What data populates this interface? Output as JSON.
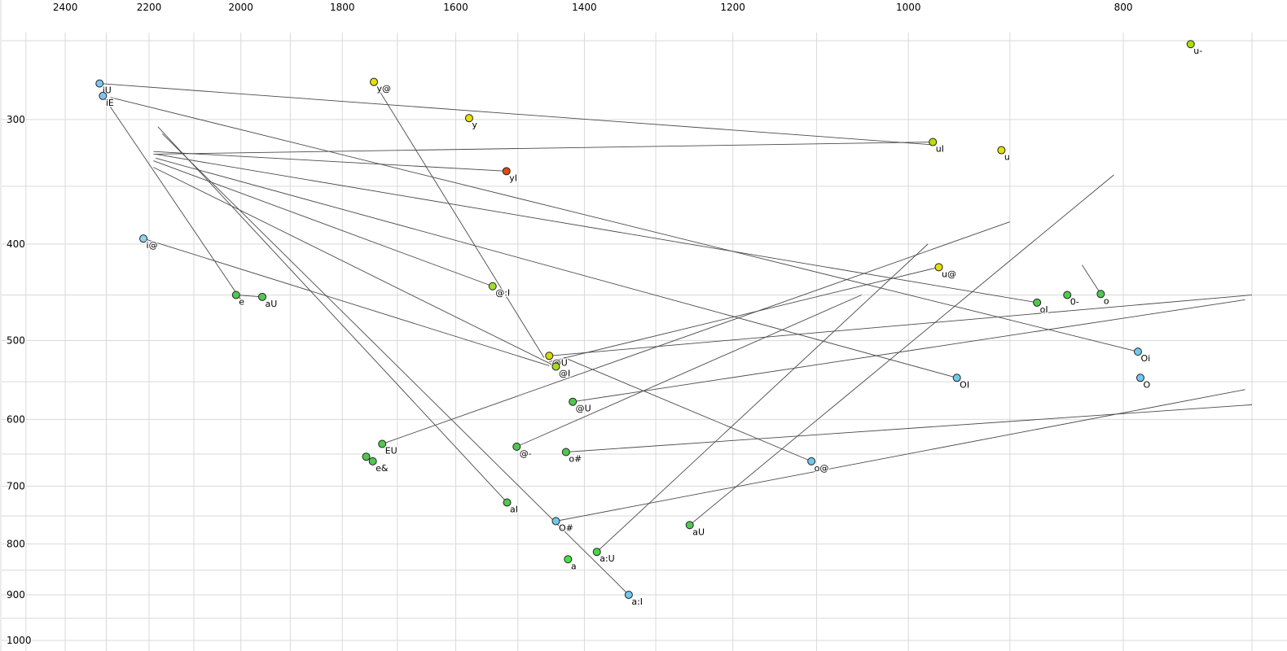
{
  "chart_data": {
    "type": "scatter",
    "title": "",
    "description": "Vowel formant plot (F2 horizontal reversed log scale, F1 vertical log scale) with diphthong trajectory lines",
    "x_axis": {
      "ticks": [
        2400,
        2200,
        2000,
        1800,
        1600,
        1400,
        1200,
        1000,
        800
      ],
      "grid_min": 700,
      "grid_max": 2500,
      "grid_step": 100,
      "scale": "log",
      "reversed": true
    },
    "y_axis": {
      "ticks": [
        300,
        400,
        500,
        600,
        700,
        800,
        900,
        1000
      ],
      "grid_min": 250,
      "grid_max": 1000,
      "grid_step": 50,
      "scale": "log",
      "reversed": false
    },
    "colors": {
      "background": "#ffffff",
      "grid": "#d9d9d9",
      "segment": "#4a4a4a",
      "marker_stroke": "#222222",
      "label": "#000000"
    },
    "points": [
      {
        "label": "u-",
        "f2": 746,
        "f1": 252,
        "color": "#a8e000"
      },
      {
        "label": "iU",
        "f2": 2316,
        "f1": 276,
        "color": "#7fc4ee"
      },
      {
        "label": "iE",
        "f2": 2308,
        "f1": 284,
        "color": "#7fc4ee"
      },
      {
        "label": "y@",
        "f2": 1742,
        "f1": 275,
        "color": "#e6e000"
      },
      {
        "label": "y",
        "f2": 1578,
        "f1": 299,
        "color": "#e6e000"
      },
      {
        "label": "uI",
        "f2": 975,
        "f1": 316,
        "color": "#b8e000"
      },
      {
        "label": "u",
        "f2": 908,
        "f1": 322,
        "color": "#e6e000"
      },
      {
        "label": "yI",
        "f2": 1518,
        "f1": 338,
        "color": "#e04a10"
      },
      {
        "label": "i@",
        "f2": 2213,
        "f1": 395,
        "color": "#8fd4f0"
      },
      {
        "label": "u@",
        "f2": 969,
        "f1": 422,
        "color": "#e6e000"
      },
      {
        "label": "0-",
        "f2": 848,
        "f1": 450,
        "color": "#50c850"
      },
      {
        "label": "o",
        "f2": 819,
        "f1": 449,
        "color": "#50c850"
      },
      {
        "label": "oI",
        "f2": 875,
        "f1": 458,
        "color": "#50c850"
      },
      {
        "label": "e",
        "f2": 2010,
        "f1": 450,
        "color": "#50c850"
      },
      {
        "label": "aU",
        "f2": 1956,
        "f1": 452,
        "color": "#50c850"
      },
      {
        "label": "@:I",
        "f2": 1540,
        "f1": 441,
        "color": "#a0dc30"
      },
      {
        "label": "@U",
        "f2": 1452,
        "f1": 518,
        "color": "#d8d800"
      },
      {
        "label": "@I",
        "f2": 1442,
        "f1": 531,
        "color": "#a8dc20"
      },
      {
        "label": "@U",
        "f2": 1417,
        "f1": 576,
        "color": "#50c850"
      },
      {
        "label": "OI",
        "f2": 951,
        "f1": 545,
        "color": "#70c8ee"
      },
      {
        "label": "Oi",
        "f2": 788,
        "f1": 513,
        "color": "#70c8ee"
      },
      {
        "label": "O",
        "f2": 786,
        "f1": 545,
        "color": "#70c8ee"
      },
      {
        "label": "EU",
        "f2": 1727,
        "f1": 635,
        "color": "#50c850"
      },
      {
        "label": "e&",
        "f2": 1744,
        "f1": 661,
        "color": "#50c850"
      },
      {
        "label": "",
        "f2": 1756,
        "f1": 654,
        "color": "#50c850"
      },
      {
        "label": "@-",
        "f2": 1502,
        "f1": 639,
        "color": "#50c850"
      },
      {
        "label": "o#",
        "f2": 1427,
        "f1": 647,
        "color": "#50c850"
      },
      {
        "label": "o@",
        "f2": 1106,
        "f1": 661,
        "color": "#70c8ee"
      },
      {
        "label": "aI",
        "f2": 1517,
        "f1": 727,
        "color": "#50c850"
      },
      {
        "label": "O#",
        "f2": 1442,
        "f1": 759,
        "color": "#70c8ee"
      },
      {
        "label": "aU",
        "f2": 1255,
        "f1": 766,
        "color": "#50c850"
      },
      {
        "label": "a:U",
        "f2": 1382,
        "f1": 815,
        "color": "#46d846"
      },
      {
        "label": "a",
        "f2": 1424,
        "f1": 829,
        "color": "#46e046"
      },
      {
        "label": "a:I",
        "f2": 1337,
        "f1": 900,
        "color": "#70c8ee"
      }
    ],
    "segments": [
      {
        "f2a": 2316,
        "f1a": 276,
        "f2b": 975,
        "f1b": 318
      },
      {
        "f2a": 2308,
        "f1a": 284,
        "f2b": 2000,
        "f1b": 455
      },
      {
        "f2a": 975,
        "f1a": 316,
        "f2b": 2190,
        "f1b": 325
      },
      {
        "f2a": 1742,
        "f1a": 275,
        "f2b": 1460,
        "f1b": 520
      },
      {
        "f2a": 1518,
        "f1a": 338,
        "f2b": 2190,
        "f1b": 323
      },
      {
        "f2a": 2213,
        "f1a": 395,
        "f2b": 1452,
        "f1b": 530
      },
      {
        "f2a": 969,
        "f1a": 422,
        "f2b": 1452,
        "f1b": 525
      },
      {
        "f2a": 1540,
        "f1a": 441,
        "f2b": 2190,
        "f1b": 330
      },
      {
        "f2a": 1452,
        "f1a": 518,
        "f2b": 700,
        "f1b": 450
      },
      {
        "f2a": 1442,
        "f1a": 531,
        "f2b": 2190,
        "f1b": 335
      },
      {
        "f2a": 1417,
        "f1a": 576,
        "f2b": 705,
        "f1b": 455
      },
      {
        "f2a": 951,
        "f1a": 545,
        "f2b": 2185,
        "f1b": 328
      },
      {
        "f2a": 875,
        "f1a": 458,
        "f2b": 2185,
        "f1b": 325
      },
      {
        "f2a": 788,
        "f1a": 513,
        "f2b": 2290,
        "f1b": 285
      },
      {
        "f2a": 1727,
        "f1a": 635,
        "f2b": 900,
        "f1b": 380
      },
      {
        "f2a": 1502,
        "f1a": 639,
        "f2b": 1050,
        "f1b": 450
      },
      {
        "f2a": 1427,
        "f1a": 647,
        "f2b": 700,
        "f1b": 580
      },
      {
        "f2a": 1442,
        "f1a": 759,
        "f2b": 705,
        "f1b": 560
      },
      {
        "f2a": 1517,
        "f1a": 727,
        "f2b": 2180,
        "f1b": 305
      },
      {
        "f2a": 1337,
        "f1a": 900,
        "f2b": 2170,
        "f1b": 310
      },
      {
        "f2a": 1255,
        "f1a": 766,
        "f2b": 808,
        "f1b": 341
      },
      {
        "f2a": 1382,
        "f1a": 815,
        "f2b": 980,
        "f1b": 400
      },
      {
        "f2a": 1106,
        "f1a": 661,
        "f2b": 1430,
        "f1b": 520
      },
      {
        "f2a": 819,
        "f1a": 449,
        "f2b": 835,
        "f1b": 420
      },
      {
        "f2a": 1744,
        "f1a": 661,
        "f2b": 1756,
        "f1b": 654
      },
      {
        "f2a": 2010,
        "f1a": 450,
        "f2b": 1958,
        "f1b": 452
      }
    ]
  }
}
